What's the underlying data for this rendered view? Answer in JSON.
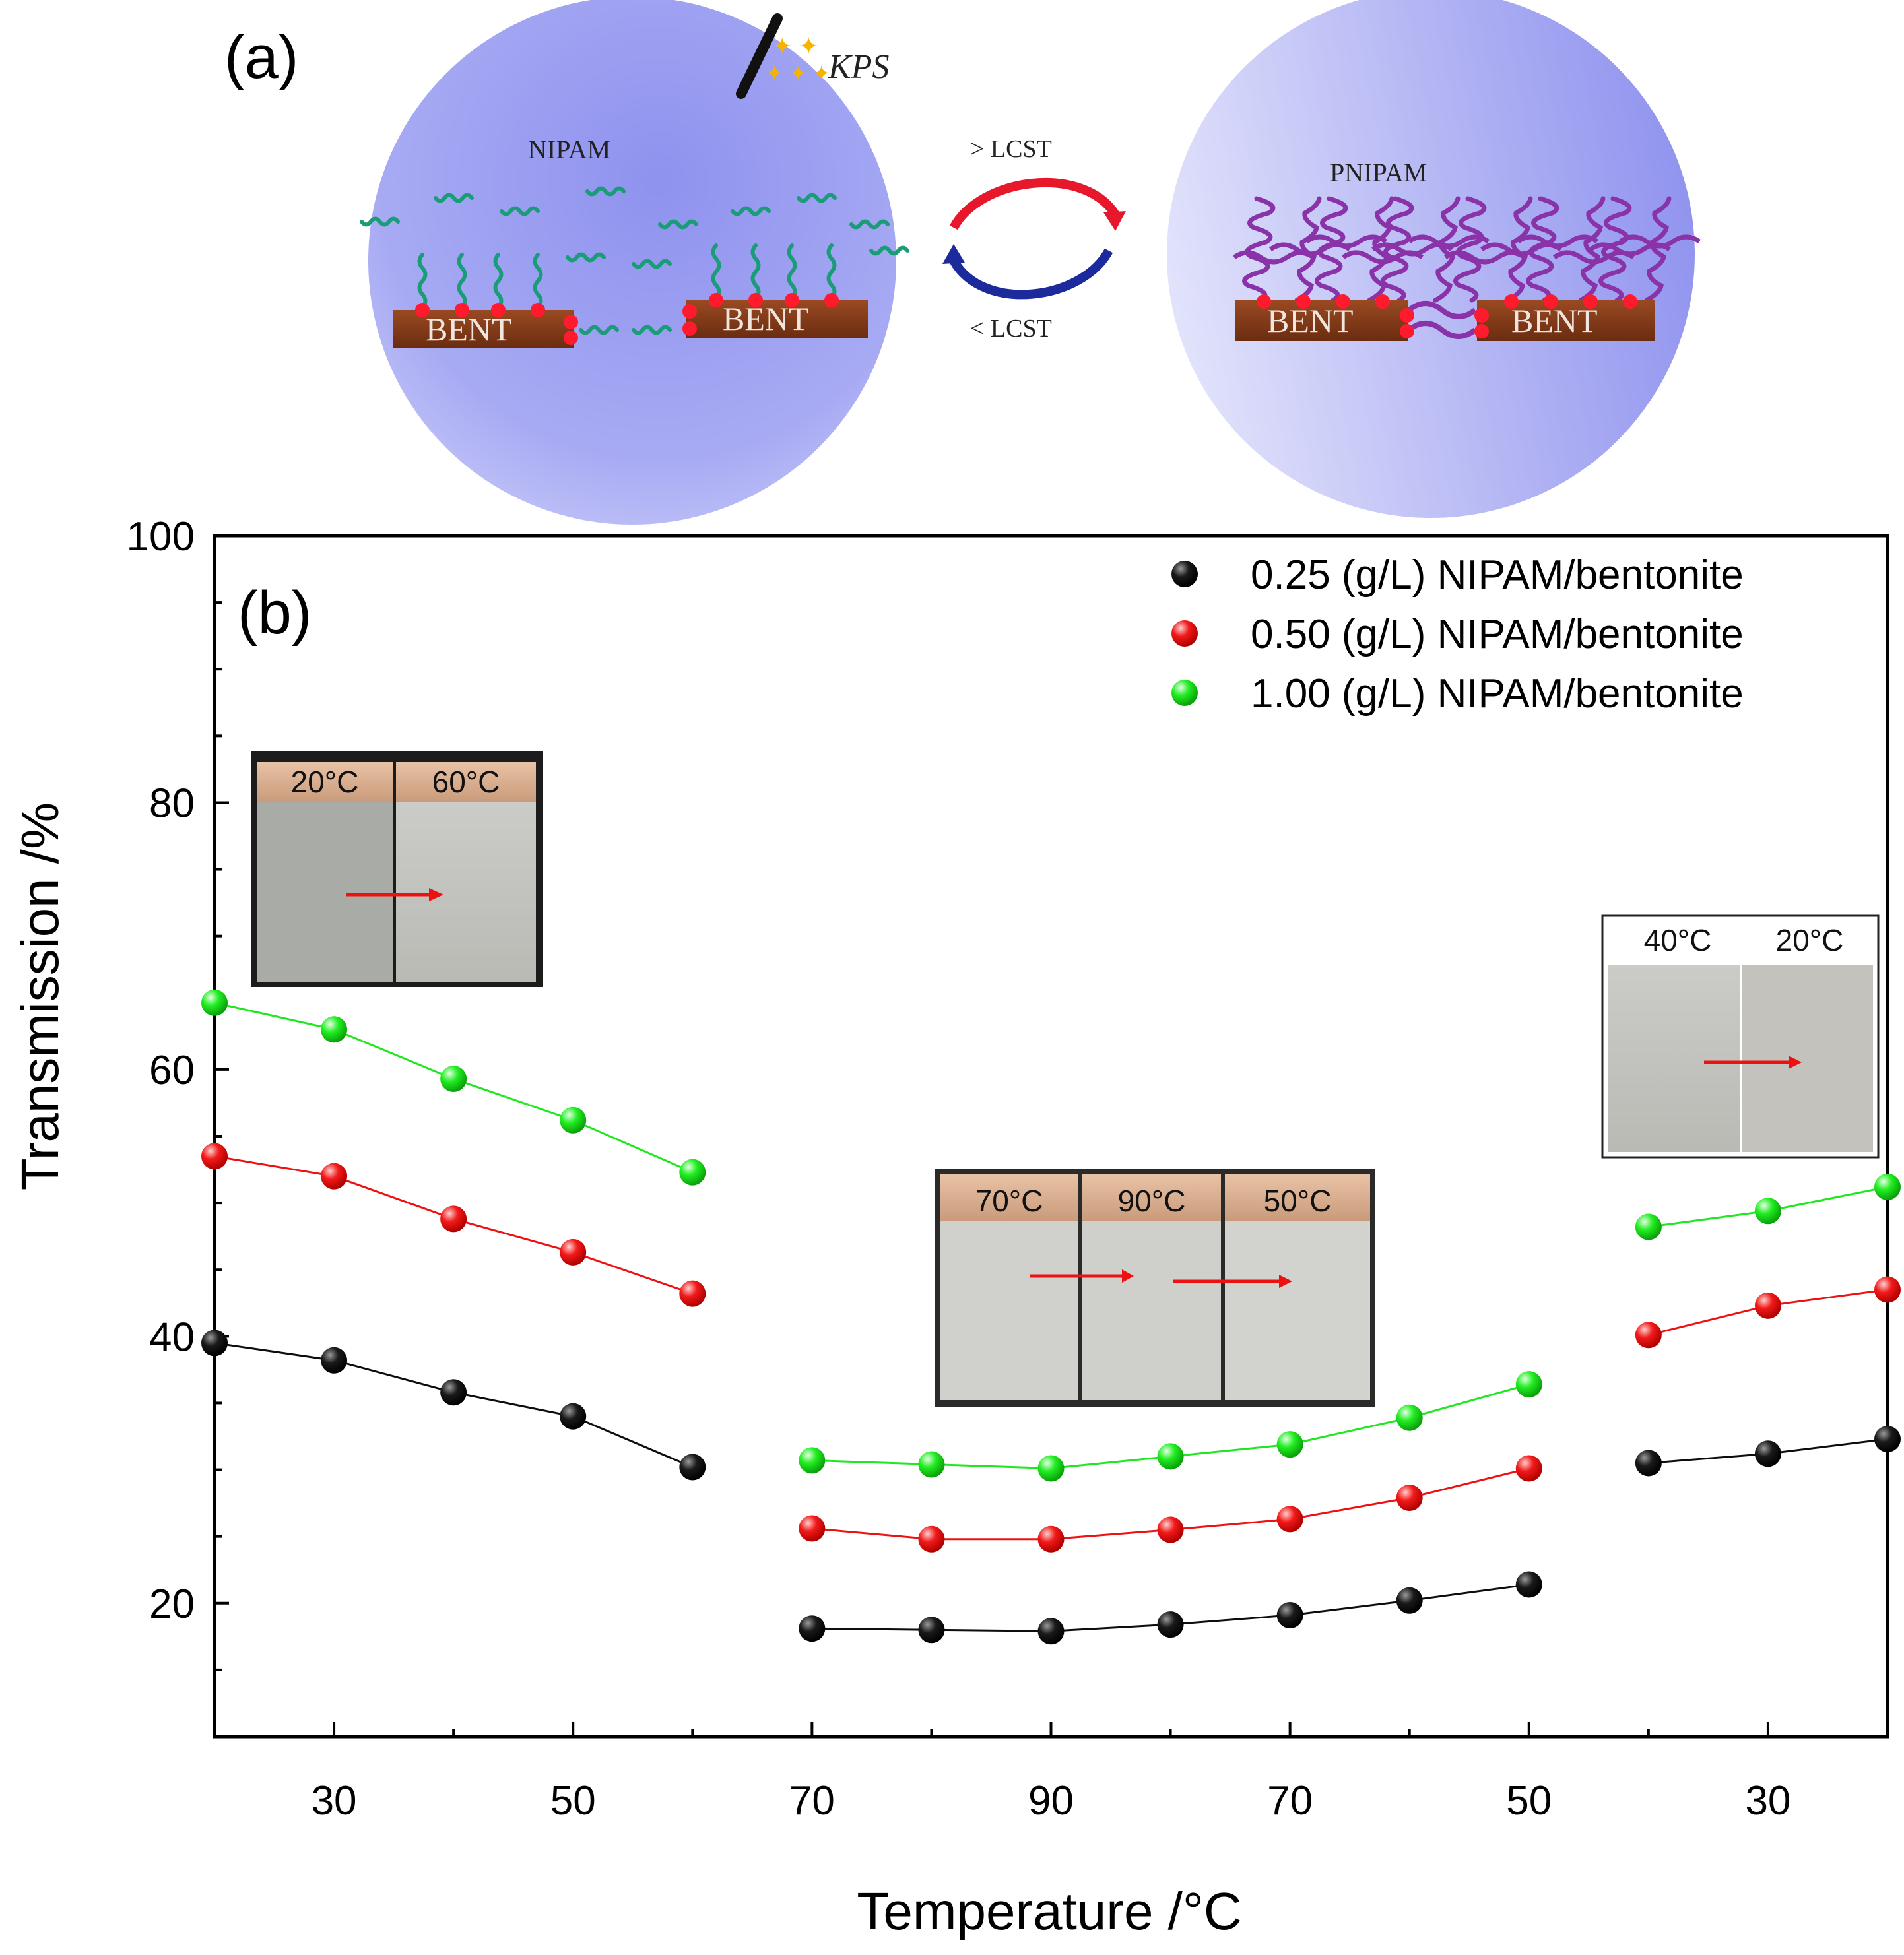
{
  "panel_a": {
    "label": "(a)",
    "kps": "KPS",
    "nipam": "NIPAM",
    "pnipam": "PNIPAM",
    "bent": "BENT",
    "above_lcst": "> LCST",
    "below_lcst": "< LCST",
    "colors": {
      "sphere": "#9c9ff0",
      "monomer": "#1a9c78",
      "polymer": "#8a32a8",
      "bent": "#7a3514",
      "anchor": "#ff1a2e",
      "arrow_heat": "#e8182c",
      "arrow_cool": "#1c2a9c"
    }
  },
  "panel_b": {
    "label": "(b)",
    "insets": [
      {
        "labels": [
          "20°C",
          "60°C"
        ]
      },
      {
        "labels": [
          "70°C",
          "90°C",
          "50°C"
        ]
      },
      {
        "labels": [
          "40°C",
          "20°C"
        ]
      }
    ]
  },
  "chart_data": {
    "type": "line",
    "xlabel": "Temperature /°C",
    "ylabel": "Transmission /%",
    "ylim": [
      10,
      100
    ],
    "yticks": [
      20,
      40,
      60,
      80,
      100
    ],
    "x": [
      20,
      30,
      40,
      50,
      60,
      70,
      80,
      90,
      80,
      70,
      60,
      50,
      40,
      30,
      20
    ],
    "xtick_labels": [
      "30",
      "50",
      "70",
      "90",
      "70",
      "50",
      "30"
    ],
    "segments": [
      [
        0,
        4
      ],
      [
        5,
        11
      ],
      [
        12,
        14
      ]
    ],
    "legend_position": "top-right",
    "grid": false,
    "series": [
      {
        "name": "0.25 (g/L) NIPAM/bentonite",
        "color": "#0d0d0d",
        "values": [
          39.5,
          38.2,
          35.8,
          34.0,
          30.2,
          18.1,
          18.0,
          17.9,
          18.4,
          19.1,
          20.2,
          21.4,
          30.5,
          31.2,
          32.3
        ]
      },
      {
        "name": "0.50 (g/L) NIPAM/bentonite",
        "color": "#ee1111",
        "values": [
          53.5,
          52.0,
          48.8,
          46.3,
          43.2,
          25.6,
          24.8,
          24.8,
          25.5,
          26.3,
          27.9,
          30.1,
          40.1,
          42.3,
          43.5
        ]
      },
      {
        "name": "1.00 (g/L) NIPAM/bentonite",
        "color": "#1ee81e",
        "values": [
          65.0,
          63.0,
          59.3,
          56.2,
          52.3,
          30.7,
          30.4,
          30.1,
          31.0,
          31.9,
          33.9,
          36.4,
          48.2,
          49.4,
          51.2
        ]
      }
    ]
  }
}
